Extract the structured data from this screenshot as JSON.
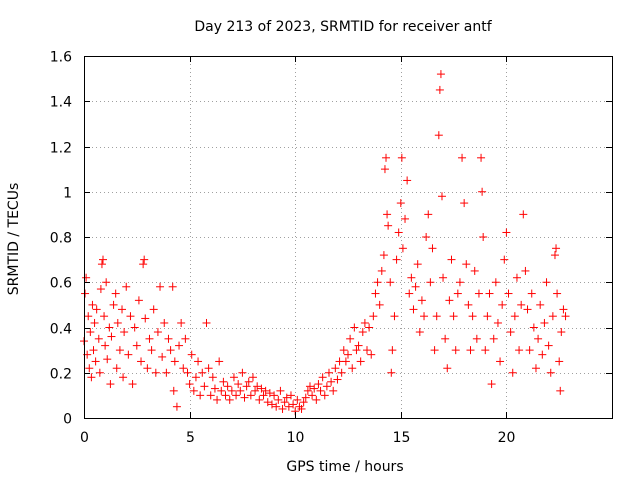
{
  "chart_data": {
    "type": "scatter",
    "title": "Day 213 of 2023, SRMTID for receiver antf",
    "xlabel": "GPS time / hours",
    "ylabel": "SRMTID / TECUs",
    "xlim": [
      0,
      25
    ],
    "ylim": [
      0,
      1.6
    ],
    "xticks": [
      0,
      5,
      10,
      15,
      20
    ],
    "xtick_labels": [
      "0",
      "5",
      "10",
      "15",
      "20"
    ],
    "yticks": [
      0,
      0.2,
      0.4,
      0.6,
      0.8,
      1.0,
      1.2,
      1.4,
      1.6
    ],
    "ytick_labels": [
      "0",
      "0.2",
      "0.4",
      "0.6",
      "0.8",
      "1",
      "1.2",
      "1.4",
      "1.6"
    ],
    "grid": true,
    "marker": "+",
    "color": "#ff0000",
    "series": [
      {
        "name": "SRMTID",
        "points": [
          [
            0.0,
            0.34
          ],
          [
            0.05,
            0.55
          ],
          [
            0.1,
            0.62
          ],
          [
            0.15,
            0.28
          ],
          [
            0.2,
            0.45
          ],
          [
            0.25,
            0.22
          ],
          [
            0.3,
            0.38
          ],
          [
            0.35,
            0.18
          ],
          [
            0.4,
            0.5
          ],
          [
            0.45,
            0.3
          ],
          [
            0.5,
            0.42
          ],
          [
            0.55,
            0.25
          ],
          [
            0.6,
            0.48
          ],
          [
            0.7,
            0.35
          ],
          [
            0.75,
            0.2
          ],
          [
            0.8,
            0.57
          ],
          [
            0.85,
            0.68
          ],
          [
            0.9,
            0.7
          ],
          [
            0.95,
            0.45
          ],
          [
            1.0,
            0.32
          ],
          [
            1.05,
            0.6
          ],
          [
            1.1,
            0.26
          ],
          [
            1.2,
            0.4
          ],
          [
            1.25,
            0.15
          ],
          [
            1.3,
            0.36
          ],
          [
            1.4,
            0.5
          ],
          [
            1.5,
            0.55
          ],
          [
            1.55,
            0.22
          ],
          [
            1.6,
            0.42
          ],
          [
            1.7,
            0.3
          ],
          [
            1.8,
            0.48
          ],
          [
            1.85,
            0.18
          ],
          [
            1.9,
            0.38
          ],
          [
            2.0,
            0.58
          ],
          [
            2.1,
            0.28
          ],
          [
            2.2,
            0.45
          ],
          [
            2.3,
            0.15
          ],
          [
            2.4,
            0.4
          ],
          [
            2.5,
            0.32
          ],
          [
            2.6,
            0.52
          ],
          [
            2.7,
            0.25
          ],
          [
            2.8,
            0.68
          ],
          [
            2.85,
            0.7
          ],
          [
            2.9,
            0.44
          ],
          [
            3.0,
            0.22
          ],
          [
            3.1,
            0.35
          ],
          [
            3.2,
            0.3
          ],
          [
            3.3,
            0.48
          ],
          [
            3.4,
            0.2
          ],
          [
            3.5,
            0.38
          ],
          [
            3.6,
            0.58
          ],
          [
            3.7,
            0.27
          ],
          [
            3.8,
            0.42
          ],
          [
            3.9,
            0.2
          ],
          [
            4.0,
            0.35
          ],
          [
            4.1,
            0.3
          ],
          [
            4.2,
            0.58
          ],
          [
            4.25,
            0.12
          ],
          [
            4.3,
            0.25
          ],
          [
            4.4,
            0.05
          ],
          [
            4.5,
            0.32
          ],
          [
            4.6,
            0.42
          ],
          [
            4.7,
            0.22
          ],
          [
            4.8,
            0.35
          ],
          [
            4.9,
            0.2
          ],
          [
            5.0,
            0.15
          ],
          [
            5.1,
            0.28
          ],
          [
            5.2,
            0.12
          ],
          [
            5.3,
            0.18
          ],
          [
            5.4,
            0.25
          ],
          [
            5.5,
            0.1
          ],
          [
            5.6,
            0.2
          ],
          [
            5.7,
            0.14
          ],
          [
            5.8,
            0.42
          ],
          [
            5.9,
            0.22
          ],
          [
            6.0,
            0.1
          ],
          [
            6.1,
            0.18
          ],
          [
            6.2,
            0.13
          ],
          [
            6.3,
            0.08
          ],
          [
            6.4,
            0.25
          ],
          [
            6.5,
            0.12
          ],
          [
            6.6,
            0.16
          ],
          [
            6.7,
            0.1
          ],
          [
            6.8,
            0.14
          ],
          [
            6.9,
            0.08
          ],
          [
            7.0,
            0.12
          ],
          [
            7.1,
            0.18
          ],
          [
            7.2,
            0.1
          ],
          [
            7.3,
            0.15
          ],
          [
            7.4,
            0.12
          ],
          [
            7.5,
            0.2
          ],
          [
            7.6,
            0.09
          ],
          [
            7.7,
            0.14
          ],
          [
            7.8,
            0.16
          ],
          [
            7.9,
            0.1
          ],
          [
            8.0,
            0.18
          ],
          [
            8.1,
            0.12
          ],
          [
            8.2,
            0.14
          ],
          [
            8.3,
            0.08
          ],
          [
            8.4,
            0.13
          ],
          [
            8.5,
            0.1
          ],
          [
            8.6,
            0.12
          ],
          [
            8.7,
            0.07
          ],
          [
            8.8,
            0.11
          ],
          [
            8.9,
            0.06
          ],
          [
            9.0,
            0.1
          ],
          [
            9.1,
            0.05
          ],
          [
            9.2,
            0.08
          ],
          [
            9.3,
            0.12
          ],
          [
            9.4,
            0.04
          ],
          [
            9.5,
            0.07
          ],
          [
            9.6,
            0.09
          ],
          [
            9.7,
            0.05
          ],
          [
            9.8,
            0.1
          ],
          [
            9.9,
            0.06
          ],
          [
            10.0,
            0.03
          ],
          [
            10.1,
            0.08
          ],
          [
            10.2,
            0.05
          ],
          [
            10.3,
            0.04
          ],
          [
            10.4,
            0.07
          ],
          [
            10.5,
            0.09
          ],
          [
            10.6,
            0.12
          ],
          [
            10.7,
            0.14
          ],
          [
            10.8,
            0.1
          ],
          [
            10.9,
            0.13
          ],
          [
            11.0,
            0.08
          ],
          [
            11.1,
            0.15
          ],
          [
            11.2,
            0.12
          ],
          [
            11.3,
            0.18
          ],
          [
            11.4,
            0.1
          ],
          [
            11.5,
            0.14
          ],
          [
            11.6,
            0.2
          ],
          [
            11.7,
            0.16
          ],
          [
            11.8,
            0.12
          ],
          [
            11.9,
            0.22
          ],
          [
            12.0,
            0.17
          ],
          [
            12.1,
            0.25
          ],
          [
            12.2,
            0.2
          ],
          [
            12.3,
            0.3
          ],
          [
            12.4,
            0.25
          ],
          [
            12.5,
            0.28
          ],
          [
            12.6,
            0.35
          ],
          [
            12.7,
            0.22
          ],
          [
            12.8,
            0.4
          ],
          [
            12.9,
            0.3
          ],
          [
            13.0,
            0.32
          ],
          [
            13.1,
            0.25
          ],
          [
            13.2,
            0.38
          ],
          [
            13.3,
            0.42
          ],
          [
            13.4,
            0.3
          ],
          [
            13.5,
            0.4
          ],
          [
            13.6,
            0.28
          ],
          [
            13.7,
            0.45
          ],
          [
            13.8,
            0.55
          ],
          [
            13.9,
            0.6
          ],
          [
            14.0,
            0.5
          ],
          [
            14.1,
            0.65
          ],
          [
            14.2,
            0.72
          ],
          [
            14.25,
            1.1
          ],
          [
            14.3,
            1.15
          ],
          [
            14.35,
            0.9
          ],
          [
            14.4,
            0.85
          ],
          [
            14.5,
            0.6
          ],
          [
            14.55,
            0.2
          ],
          [
            14.6,
            0.3
          ],
          [
            14.7,
            0.45
          ],
          [
            14.8,
            0.7
          ],
          [
            14.9,
            0.82
          ],
          [
            15.0,
            0.95
          ],
          [
            15.05,
            1.15
          ],
          [
            15.1,
            0.75
          ],
          [
            15.2,
            0.88
          ],
          [
            15.3,
            1.05
          ],
          [
            15.4,
            0.55
          ],
          [
            15.5,
            0.62
          ],
          [
            15.6,
            0.48
          ],
          [
            15.7,
            0.58
          ],
          [
            15.8,
            0.68
          ],
          [
            15.9,
            0.38
          ],
          [
            16.0,
            0.52
          ],
          [
            16.1,
            0.45
          ],
          [
            16.2,
            0.8
          ],
          [
            16.3,
            0.9
          ],
          [
            16.4,
            0.6
          ],
          [
            16.5,
            0.75
          ],
          [
            16.6,
            0.3
          ],
          [
            16.7,
            0.45
          ],
          [
            16.8,
            1.25
          ],
          [
            16.85,
            1.45
          ],
          [
            16.9,
            1.52
          ],
          [
            16.95,
            0.98
          ],
          [
            17.0,
            0.62
          ],
          [
            17.1,
            0.35
          ],
          [
            17.2,
            0.22
          ],
          [
            17.3,
            0.52
          ],
          [
            17.4,
            0.7
          ],
          [
            17.5,
            0.45
          ],
          [
            17.6,
            0.3
          ],
          [
            17.7,
            0.55
          ],
          [
            17.8,
            0.6
          ],
          [
            17.9,
            1.15
          ],
          [
            18.0,
            0.95
          ],
          [
            18.1,
            0.68
          ],
          [
            18.2,
            0.5
          ],
          [
            18.3,
            0.3
          ],
          [
            18.4,
            0.45
          ],
          [
            18.5,
            0.65
          ],
          [
            18.6,
            0.35
          ],
          [
            18.7,
            0.55
          ],
          [
            18.8,
            1.15
          ],
          [
            18.85,
            1.0
          ],
          [
            18.9,
            0.8
          ],
          [
            19.0,
            0.3
          ],
          [
            19.1,
            0.45
          ],
          [
            19.2,
            0.55
          ],
          [
            19.3,
            0.15
          ],
          [
            19.4,
            0.35
          ],
          [
            19.5,
            0.6
          ],
          [
            19.6,
            0.42
          ],
          [
            19.7,
            0.25
          ],
          [
            19.8,
            0.5
          ],
          [
            19.9,
            0.7
          ],
          [
            20.0,
            0.82
          ],
          [
            20.1,
            0.55
          ],
          [
            20.2,
            0.38
          ],
          [
            20.3,
            0.2
          ],
          [
            20.4,
            0.45
          ],
          [
            20.5,
            0.62
          ],
          [
            20.6,
            0.3
          ],
          [
            20.7,
            0.5
          ],
          [
            20.8,
            0.9
          ],
          [
            20.9,
            0.65
          ],
          [
            21.0,
            0.48
          ],
          [
            21.1,
            0.3
          ],
          [
            21.2,
            0.55
          ],
          [
            21.3,
            0.4
          ],
          [
            21.4,
            0.22
          ],
          [
            21.5,
            0.35
          ],
          [
            21.6,
            0.5
          ],
          [
            21.7,
            0.28
          ],
          [
            21.8,
            0.42
          ],
          [
            21.9,
            0.6
          ],
          [
            22.0,
            0.32
          ],
          [
            22.1,
            0.2
          ],
          [
            22.2,
            0.45
          ],
          [
            22.3,
            0.72
          ],
          [
            22.35,
            0.75
          ],
          [
            22.4,
            0.55
          ],
          [
            22.5,
            0.25
          ],
          [
            22.55,
            0.12
          ],
          [
            22.6,
            0.38
          ],
          [
            22.7,
            0.48
          ],
          [
            22.8,
            0.45
          ]
        ]
      }
    ]
  }
}
